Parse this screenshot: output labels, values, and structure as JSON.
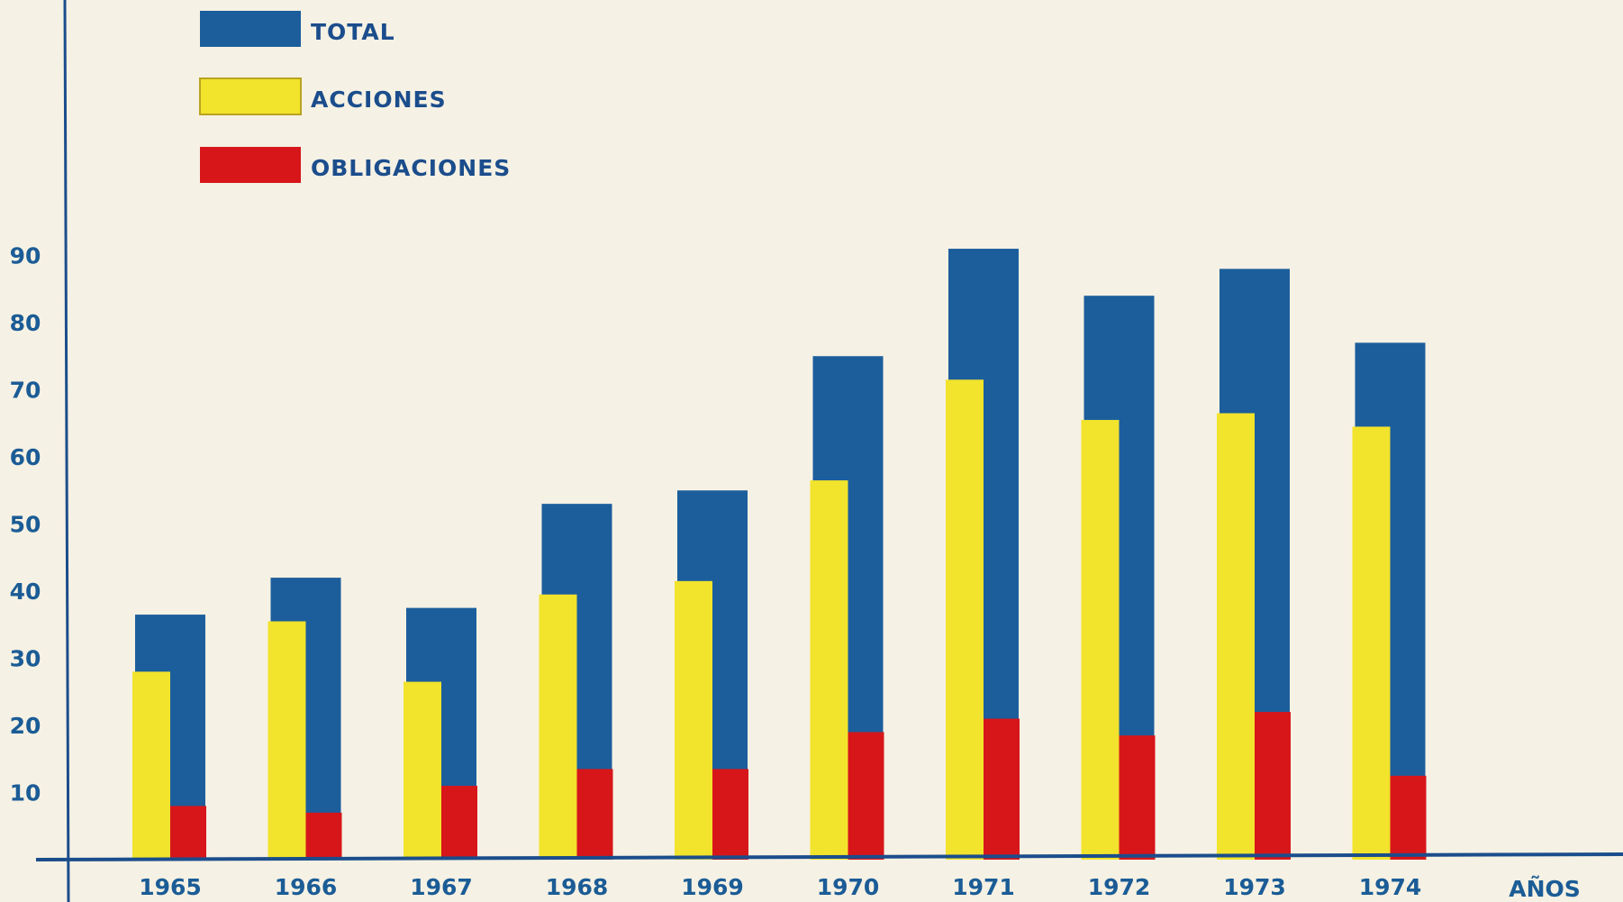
{
  "chart_data": {
    "type": "bar",
    "categories": [
      "1965",
      "1966",
      "1967",
      "1968",
      "1969",
      "1970",
      "1971",
      "1972",
      "1973",
      "1974"
    ],
    "series": [
      {
        "name": "TOTAL",
        "color": "#1c5e9c",
        "values": [
          36.5,
          42,
          37.5,
          53,
          55,
          75,
          91,
          84,
          88,
          77
        ]
      },
      {
        "name": "ACCIONES",
        "color": "#f2e32c",
        "values": [
          28,
          35.5,
          26.5,
          39.5,
          41.5,
          56.5,
          71.5,
          65.5,
          66.5,
          64.5
        ]
      },
      {
        "name": "OBLIGACIONES",
        "color": "#d7161a",
        "values": [
          8,
          7,
          11,
          13.5,
          13.5,
          19,
          21,
          18.5,
          22,
          12.5
        ]
      }
    ],
    "xlabel": "AÑOS",
    "ylabel": "",
    "yticks": [
      10,
      20,
      30,
      40,
      50,
      60,
      70,
      80,
      90
    ],
    "ylim": [
      0,
      100
    ],
    "legend_position": "top-left",
    "grid": false
  }
}
